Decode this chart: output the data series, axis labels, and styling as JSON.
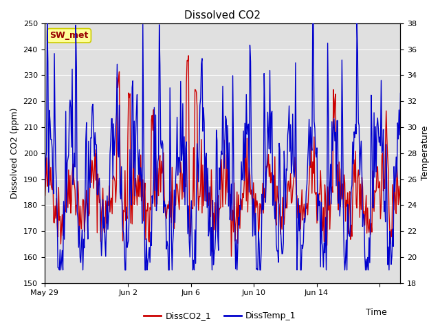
{
  "title": "Dissolved CO2",
  "xlabel": "Time",
  "ylabel_left": "Dissolved CO2 (ppm)",
  "ylabel_right": "Temperature",
  "legend_label1": "DissCO2_1",
  "legend_label2": "DissTemp_1",
  "annotation": "SW_met",
  "ylim_left": [
    150,
    250
  ],
  "ylim_right": [
    18,
    38
  ],
  "yticks_left": [
    150,
    160,
    170,
    180,
    190,
    200,
    210,
    220,
    230,
    240,
    250
  ],
  "yticks_right": [
    18,
    20,
    22,
    24,
    26,
    28,
    30,
    32,
    34,
    36,
    38
  ],
  "color_co2": "#cc0000",
  "color_temp": "#0000cc",
  "fig_bg_color": "#ffffff",
  "plot_bg_color": "#e0e0e0",
  "annotation_bg": "#ffff99",
  "annotation_border": "#cccc00",
  "annotation_text_color": "#990000",
  "title_fontsize": 11,
  "axis_label_fontsize": 9,
  "tick_fontsize": 8,
  "legend_fontsize": 9,
  "line_width": 1.0,
  "xlim": [
    0,
    17
  ],
  "x_tick_positions": [
    0,
    4,
    7,
    10,
    13,
    16
  ],
  "x_tick_labels": [
    "May 29",
    "Jun 2",
    "Jun 6",
    "Jun 10",
    "Jun 14",
    ""
  ]
}
